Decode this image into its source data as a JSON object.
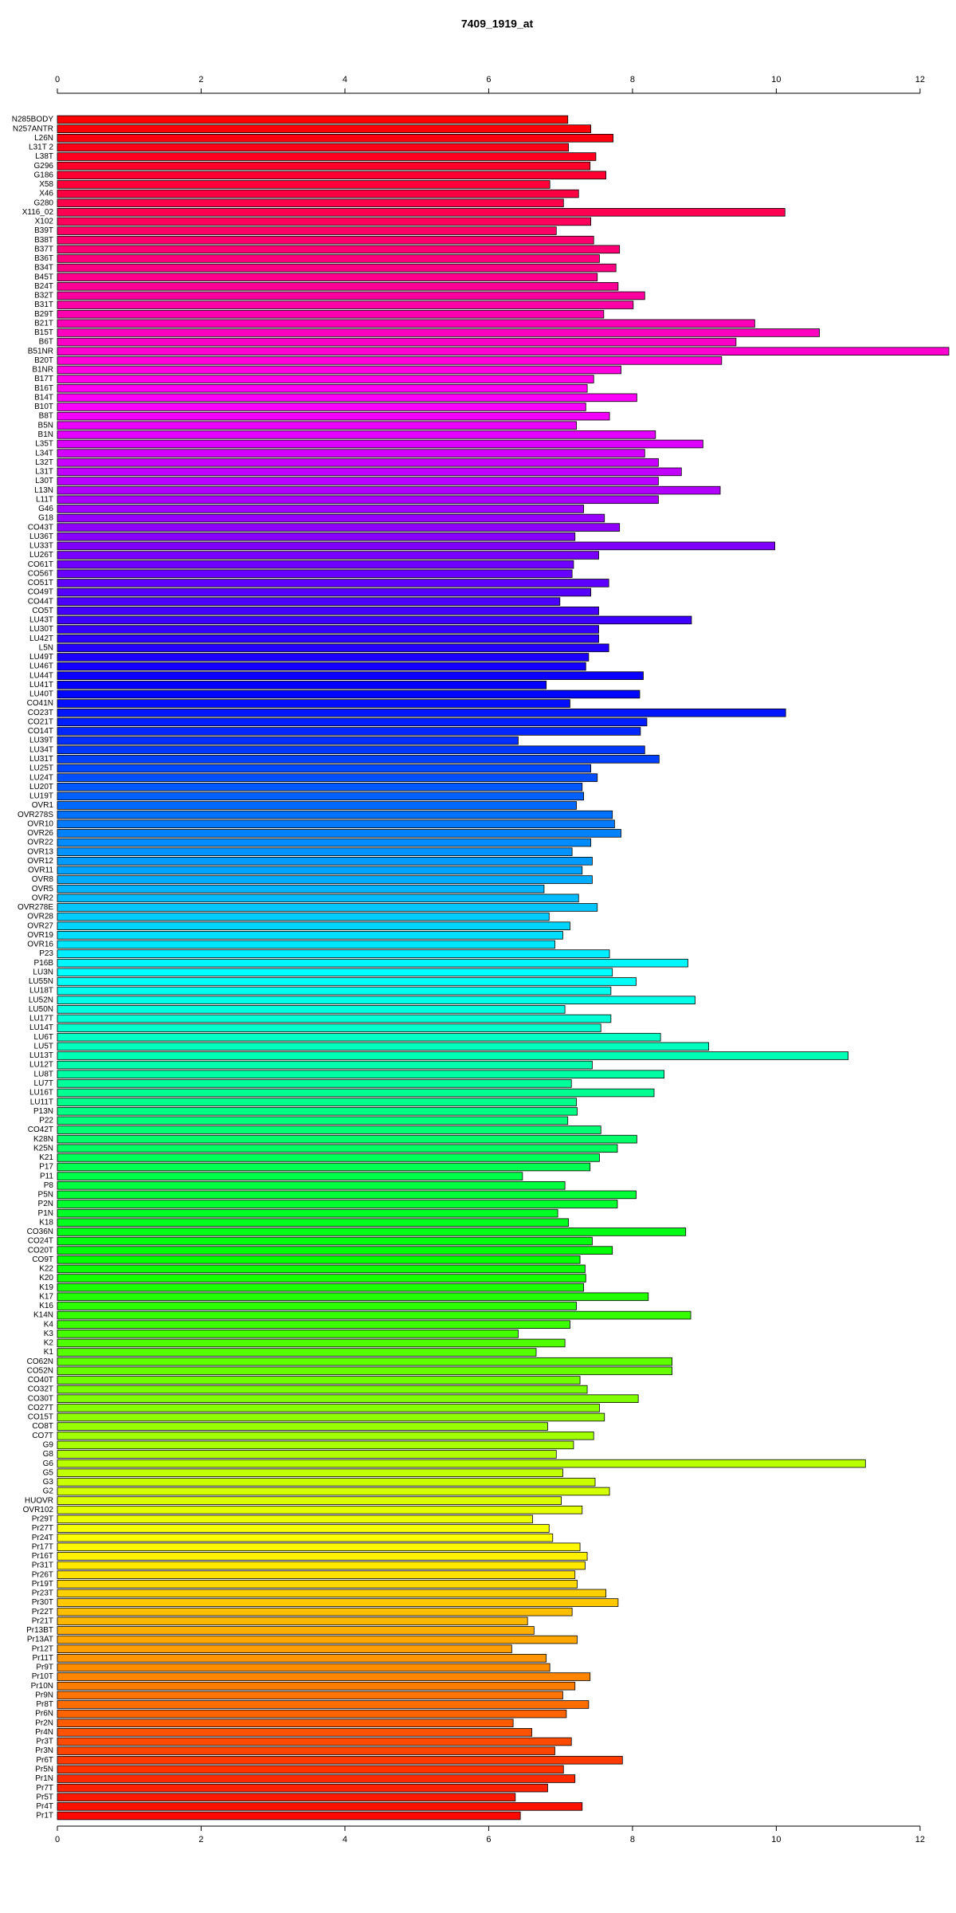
{
  "chart_data": {
    "type": "barh",
    "title": "7409_1919_at",
    "categories": [
      "N285BODY",
      "N257ANTR",
      "L26N",
      "L31T 2",
      "L38T",
      "G296",
      "G186",
      "X58",
      "X46",
      "G280",
      "X116_02",
      "X102",
      "B39T",
      "B38T",
      "B37T",
      "B36T",
      "B34T",
      "B45T",
      "B24T",
      "B32T",
      "B31T",
      "B29T",
      "B21T",
      "B15T",
      "B6T",
      "B51NR",
      "B20T",
      "B1NR",
      "B17T",
      "B16T",
      "B14T",
      "B10T",
      "B8T",
      "B5N",
      "B1N",
      "L35T",
      "L34T",
      "L32T",
      "L31T",
      "L30T",
      "L13N",
      "L11T",
      "G46",
      "G18",
      "CO43T",
      "LU36T",
      "LU33T",
      "LU26T",
      "CO61T",
      "CO56T",
      "CO51T",
      "CO49T",
      "CO44T",
      "CO5T",
      "LU43T",
      "LU30T",
      "LU42T",
      "L5N",
      "LU49T",
      "LU46T",
      "LU44T",
      "LU41T",
      "LU40T",
      "CO41N",
      "CO23T",
      "CO21T",
      "CO14T",
      "LU39T",
      "LU34T",
      "LU31T",
      "LU25T",
      "LU24T",
      "LU20T",
      "LU19T",
      "OVR1",
      "OVR278S",
      "OVR10",
      "OVR26",
      "OVR22",
      "OVR13",
      "OVR12",
      "OVR11",
      "OVR8",
      "OVR5",
      "OVR2",
      "OVR278E",
      "OVR28",
      "OVR27",
      "OVR19",
      "OVR16",
      "P23",
      "P16B",
      "LU3N",
      "LU55N",
      "LU18T",
      "LU52N",
      "LU50N",
      "LU17T",
      "LU14T",
      "LU6T",
      "LU5T",
      "LU13T",
      "LU12T",
      "LU8T",
      "LU7T",
      "LU16T",
      "LU11T",
      "P13N",
      "P22",
      "CO42T",
      "K28N",
      "K25N",
      "K21",
      "P17",
      "P11",
      "P8",
      "P5N",
      "P2N",
      "P1N",
      "K18",
      "CO36N",
      "CO24T",
      "CO20T",
      "CO9T",
      "K22",
      "K20",
      "K19",
      "K17",
      "K16",
      "K14N",
      "K4",
      "K3",
      "K2",
      "K1",
      "CO62N",
      "CO52N",
      "CO40T",
      "CO32T",
      "CO30T",
      "CO27T",
      "CO15T",
      "CO8T",
      "CO7T",
      "G9",
      "G8",
      "G6",
      "G5",
      "G3",
      "G2",
      "HUOVR",
      "OVR102",
      "Pr29T",
      "Pr27T",
      "Pr24T",
      "Pr17T",
      "Pr16T",
      "Pr31T",
      "Pr26T",
      "Pr19T",
      "Pr23T",
      "Pr30T",
      "Pr22T",
      "Pr21T",
      "Pr13BT",
      "Pr13AT",
      "Pr12T",
      "Pr11T",
      "Pr9T",
      "Pr10T",
      "Pr10N",
      "Pr9N",
      "Pr8T",
      "Pr6N",
      "Pr2N",
      "Pr4N",
      "Pr3T",
      "Pr3N",
      "Pr6T",
      "Pr5N",
      "Pr1N",
      "Pr7T",
      "Pr5T",
      "Pr4T",
      "Pr1T"
    ],
    "values": [
      7.1,
      7.42,
      7.73,
      7.11,
      7.49,
      7.41,
      7.63,
      6.85,
      7.25,
      7.04,
      10.12,
      7.42,
      6.94,
      7.46,
      7.82,
      7.54,
      7.77,
      7.51,
      7.8,
      8.17,
      8.01,
      7.6,
      9.7,
      10.6,
      9.44,
      12.4,
      9.24,
      7.84,
      7.46,
      7.37,
      8.06,
      7.35,
      7.68,
      7.22,
      8.32,
      8.98,
      8.17,
      8.36,
      8.68,
      8.36,
      9.22,
      8.36,
      7.32,
      7.61,
      7.82,
      7.2,
      9.98,
      7.53,
      7.18,
      7.16,
      7.67,
      7.42,
      6.99,
      7.53,
      8.82,
      7.53,
      7.53,
      7.67,
      7.39,
      7.35,
      8.15,
      6.8,
      8.1,
      7.13,
      10.13,
      8.2,
      8.11,
      6.41,
      8.17,
      8.37,
      7.42,
      7.51,
      7.3,
      7.32,
      7.22,
      7.72,
      7.75,
      7.84,
      7.42,
      7.16,
      7.44,
      7.3,
      7.44,
      6.77,
      7.25,
      7.51,
      6.84,
      7.13,
      7.03,
      6.92,
      7.68,
      8.77,
      7.72,
      8.05,
      7.7,
      8.87,
      7.06,
      7.7,
      7.56,
      8.39,
      9.06,
      11.0,
      7.44,
      8.44,
      7.15,
      8.3,
      7.22,
      7.23,
      7.1,
      7.56,
      8.06,
      7.79,
      7.54,
      7.41,
      6.47,
      7.06,
      8.05,
      7.79,
      6.96,
      7.11,
      8.74,
      7.44,
      7.72,
      7.27,
      7.34,
      7.35,
      7.32,
      8.22,
      7.22,
      8.81,
      7.13,
      6.41,
      7.06,
      6.66,
      8.55,
      8.55,
      7.27,
      7.37,
      8.08,
      7.54,
      7.61,
      6.82,
      7.46,
      7.18,
      6.94,
      11.24,
      7.03,
      7.48,
      7.68,
      7.01,
      7.3,
      6.61,
      6.84,
      6.89,
      7.27,
      7.37,
      7.34,
      7.2,
      7.23,
      7.63,
      7.8,
      7.16,
      6.54,
      6.63,
      7.23,
      6.32,
      6.8,
      6.85,
      7.41,
      7.2,
      7.03,
      7.39,
      7.08,
      6.34,
      6.6,
      7.15,
      6.92,
      7.86,
      7.04,
      7.2,
      6.82,
      6.37,
      7.3,
      6.44
    ],
    "xlim": [
      0,
      12.4
    ],
    "xticks": [
      0,
      2,
      4,
      6,
      8,
      10,
      12
    ],
    "colormap": "rainbow",
    "colormap_reversed": true,
    "bar_edge_color": "#000000"
  }
}
